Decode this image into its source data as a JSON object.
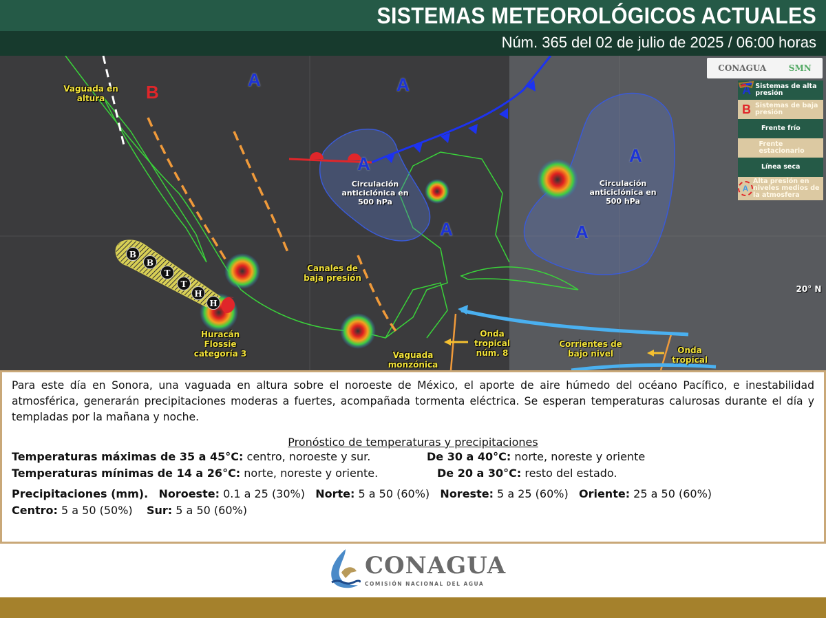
{
  "header": {
    "title": "SISTEMAS METEOROLÓGICOS ACTUALES",
    "subtitle": "Núm. 365 del 02 de julio de 2025 / 06:00 horas"
  },
  "map": {
    "labels": {
      "vaguada_altura": "Vaguada en altura",
      "circ1": "Circulación anticiclónica en 500 hPa",
      "circ2": "Circulación anticiclónica en 500 hPa",
      "canales": "Canales de baja presión",
      "huracan": "Huracán Flossie categoría 3",
      "vaguada_monzonica": "Vaguada monzónica",
      "onda8": "Onda tropical núm. 8",
      "corrientes": "Corrientes de bajo nivel",
      "onda": "Onda tropical",
      "lat": "20° N"
    },
    "high_symbol": "A",
    "low_symbol": "B",
    "track_points": [
      "B",
      "B",
      "T",
      "T",
      "H",
      "H"
    ],
    "logos": [
      "CONAGUA",
      "SMN"
    ],
    "legend": [
      {
        "symbol": "A",
        "label": "Sistemas de alta presión",
        "color": "#1d33d6"
      },
      {
        "symbol": "B",
        "label": "Sistemas de baja presión",
        "color": "#e0262a"
      },
      {
        "symbol": "cold-front-icon",
        "label": "Frente frío",
        "color": "#1d33d6"
      },
      {
        "symbol": "stationary-front-icon",
        "label": "Frente estacionario",
        "color": "#e0262a"
      },
      {
        "symbol": "dry-line-icon",
        "label": "Línea seca",
        "color": "#b07a2a"
      },
      {
        "symbol": "A",
        "label": "Alta presión en niveles medios de la atmosfera",
        "color": "#e0262a"
      }
    ]
  },
  "text": {
    "paragraph": "Para este día en Sonora, una vaguada en altura sobre el noroeste de México, el aporte de aire húmedo del océano Pacífico, e inestabilidad atmosférica, generarán precipitaciones moderas a fuertes, acompañada tormenta eléctrica. Se esperan temperaturas calurosas durante el día y templadas por la mañana y noche.",
    "forecast_title": "Pronóstico de temperaturas y precipitaciones",
    "tmax": {
      "label": "Temperaturas máximas de 35 a 45°C:",
      "value": " centro, noroeste y sur.",
      "label2": "De 30 a 40°C:",
      "value2": " norte, noreste y oriente"
    },
    "tmin": {
      "label": "Temperaturas mínimas de 14 a 26°C:",
      "value": " norte, noreste y oriente.",
      "label2": "De 20 a 30°C:",
      "value2": " resto del estado."
    },
    "precip": {
      "label": "Precipitaciones (mm).",
      "regions": [
        {
          "name": "Noroeste:",
          "value": " 0.1 a 25 (30%)"
        },
        {
          "name": "Norte:",
          "value": " 5 a 50 (60%)"
        },
        {
          "name": "Noreste:",
          "value": " 5 a 25 (60%)"
        },
        {
          "name": "Oriente:",
          "value": " 25 a 50 (60%)"
        },
        {
          "name": "Centro:",
          "value": " 5 a 50 (50%)"
        },
        {
          "name": "Sur:",
          "value": " 5 a 50 (60%)"
        }
      ]
    }
  },
  "footer": {
    "logo_name": "CONAGUA",
    "logo_sub": "COMISIÓN NACIONAL DEL AGUA"
  },
  "colors": {
    "header": "#255a47",
    "header_dark": "#173a2d",
    "border": "#c9a878",
    "gold": "#a5812c"
  }
}
